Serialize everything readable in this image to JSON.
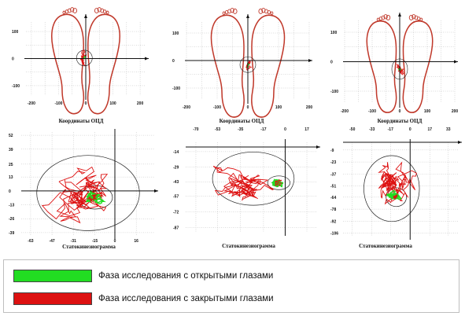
{
  "colors": {
    "open_eyes": "#22dd22",
    "closed_eyes": "#dd1111",
    "feet_outline": "#c0392b",
    "axes": "#111111",
    "grid": "#a8a8a8"
  },
  "chart_data": [
    {
      "type": "scatter",
      "title": "Координаты ОЦД",
      "x_ticks": [
        "-200",
        "-100",
        "0",
        "100",
        "200"
      ],
      "y_ticks": [
        "100",
        "0",
        "-100"
      ],
      "grid": true,
      "center_of_pressure": {
        "x": -5,
        "y": 2
      },
      "series": []
    },
    {
      "type": "scatter",
      "title": "Координаты ОЦД",
      "x_ticks": [
        "-200",
        "-100",
        "0",
        "100",
        "200"
      ],
      "y_ticks": [
        "100",
        "0",
        "-100"
      ],
      "grid": true,
      "center_of_pressure": {
        "x": 0,
        "y": -15
      },
      "series": []
    },
    {
      "type": "scatter",
      "title": "Координаты ОЦД",
      "x_ticks": [
        "-200",
        "-100",
        "0",
        "100",
        "200"
      ],
      "y_ticks": [
        "100",
        "0",
        "-100"
      ],
      "grid": true,
      "center_of_pressure": {
        "x": 0,
        "y": -25
      },
      "series": []
    },
    {
      "type": "line",
      "title": "Статокинезиограмма",
      "x_ticks": [
        "-63",
        "-47",
        "-31",
        "-15",
        "0",
        "16"
      ],
      "y_ticks": [
        "52",
        "39",
        "25",
        "13",
        "0",
        "-13",
        "-26",
        "-39"
      ],
      "xlim": [
        -70,
        30
      ],
      "ylim": [
        -42,
        55
      ],
      "grid": true,
      "series": [
        {
          "center": [
            -20,
            -2
          ],
          "spread": [
            24,
            22
          ],
          "seed": 11
        },
        {
          "center": [
            -15,
            -6
          ],
          "spread": [
            6,
            5
          ],
          "seed": 12
        }
      ]
    },
    {
      "type": "line",
      "title": "Статокинезиограмма",
      "x_ticks": [
        "-70",
        "-53",
        "-35",
        "-17",
        "0",
        "17"
      ],
      "y_ticks": [
        "-14",
        "-29",
        "-43",
        "-57",
        "-72",
        "-87"
      ],
      "xlim": [
        -78,
        25
      ],
      "ylim": [
        -92,
        -5
      ],
      "grid": true,
      "series": [
        {
          "center": [
            -25,
            -40
          ],
          "spread": [
            20,
            16
          ],
          "seed": 21
        },
        {
          "center": [
            -5,
            -44
          ],
          "spread": [
            4,
            3
          ],
          "seed": 22
        }
      ]
    },
    {
      "type": "line",
      "title": "Статокинезиограмма",
      "x_ticks": [
        "-50",
        "-33",
        "-17",
        "0",
        "17",
        "33"
      ],
      "y_ticks": [
        "-9",
        "-23",
        "-37",
        "-51",
        "-64",
        "-78",
        "-92",
        "-106"
      ],
      "xlim": [
        -58,
        42
      ],
      "ylim": [
        -110,
        0
      ],
      "grid": true,
      "series": [
        {
          "center": [
            -16,
            -54
          ],
          "spread": [
            15,
            24
          ],
          "seed": 31
        },
        {
          "center": [
            -12,
            -64
          ],
          "spread": [
            4,
            5
          ],
          "seed": 32
        }
      ]
    }
  ],
  "legend": {
    "open": "Фаза исследования с открытыми глазами",
    "closed": "Фаза исследования с закрытыми глазами"
  }
}
